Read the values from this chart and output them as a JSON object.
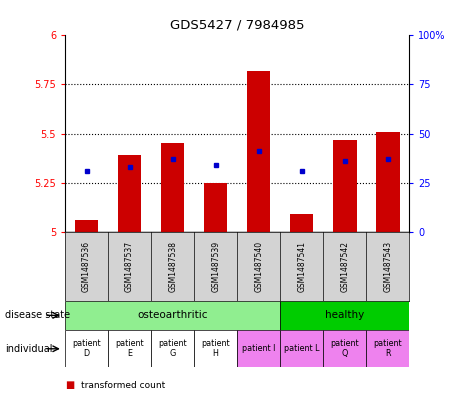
{
  "title": "GDS5427 / 7984985",
  "samples": [
    "GSM1487536",
    "GSM1487537",
    "GSM1487538",
    "GSM1487539",
    "GSM1487540",
    "GSM1487541",
    "GSM1487542",
    "GSM1487543"
  ],
  "bar_values": [
    5.06,
    5.39,
    5.45,
    5.25,
    5.82,
    5.09,
    5.47,
    5.51
  ],
  "blue_values": [
    5.31,
    5.33,
    5.37,
    5.34,
    5.41,
    5.31,
    5.36,
    5.37
  ],
  "ymin": 5.0,
  "ymax": 6.0,
  "yticks": [
    5.0,
    5.25,
    5.5,
    5.75,
    6.0
  ],
  "ytick_labels": [
    "5",
    "5.25",
    "5.5",
    "5.75",
    "6"
  ],
  "right_yticks": [
    0,
    25,
    50,
    75,
    100
  ],
  "right_ytick_labels": [
    "0",
    "25",
    "50",
    "75",
    "100%"
  ],
  "bar_color": "#cc0000",
  "blue_color": "#0000cc",
  "osteo_color": "#90ee90",
  "healthy_color": "#00cc00",
  "ind_colors_osteo": "#ffffff",
  "ind_colors_patient_I": "#ee82ee",
  "ind_colors_patient_L": "#ee82ee",
  "ind_colors_healthy": "#ee82ee",
  "individual_labels": [
    "patient\nD",
    "patient\nE",
    "patient\nG",
    "patient\nH",
    "patient I",
    "patient L",
    "patient\nQ",
    "patient\nR"
  ],
  "individual_colors": [
    "#ffffff",
    "#ffffff",
    "#ffffff",
    "#ffffff",
    "#ee82ee",
    "#ee82ee",
    "#ee82ee",
    "#ee82ee"
  ],
  "sample_bg": "#d3d3d3",
  "bar_width": 0.55
}
